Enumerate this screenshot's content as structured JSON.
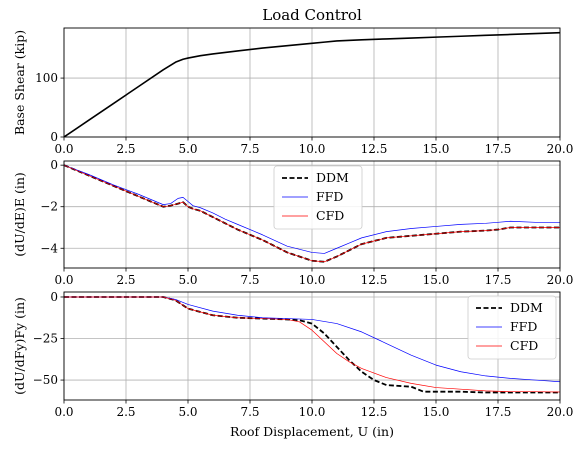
{
  "chart_data": [
    {
      "type": "line",
      "title": "Load Control",
      "xlabel": "",
      "ylabel": "Base Shear (kip)",
      "xlim": [
        0,
        20
      ],
      "ylim": [
        0,
        185
      ],
      "xticks": [
        "0.0",
        "2.5",
        "5.0",
        "7.5",
        "10.0",
        "12.5",
        "15.0",
        "17.5",
        "20.0"
      ],
      "yticks": [
        "0",
        "100"
      ],
      "ytick_values": [
        0,
        100
      ],
      "grid": true,
      "legend": null,
      "series": [
        {
          "color": "#000000",
          "dash": "solid",
          "x": [
            0,
            1,
            2,
            3,
            4,
            4.5,
            4.8,
            5.0,
            5.5,
            6,
            7,
            8,
            9,
            10,
            10.5,
            11,
            12,
            13,
            14,
            15,
            16,
            17,
            18,
            19,
            20
          ],
          "y": [
            0,
            28.5,
            57,
            85.5,
            114,
            127,
            132,
            134,
            138,
            141,
            146,
            151,
            155,
            159,
            161,
            163,
            165,
            166.5,
            168,
            169.5,
            171,
            172.5,
            174,
            175.5,
            177
          ]
        }
      ]
    },
    {
      "type": "line",
      "title": "",
      "xlabel": "",
      "ylabel": "(dU/dE)E (in)",
      "xlim": [
        0,
        20
      ],
      "ylim": [
        -4.95,
        0.2
      ],
      "xticks": [
        "0.0",
        "2.5",
        "5.0",
        "7.5",
        "10.0",
        "12.5",
        "15.0",
        "17.5",
        "20.0"
      ],
      "yticks": [
        "0",
        "−2",
        "−4"
      ],
      "ytick_values": [
        0,
        -2,
        -4
      ],
      "grid": true,
      "legend": "top-center",
      "series": [
        {
          "name": "DDM",
          "color": "#000000",
          "dash": "dashed",
          "x": [
            0,
            1,
            2,
            3,
            4,
            4.3,
            4.6,
            4.8,
            5.0,
            5.2,
            5.5,
            6,
            6.5,
            7,
            8,
            9,
            10,
            10.5,
            11,
            11.5,
            12,
            13,
            14,
            15,
            16,
            17,
            17.5,
            18,
            19,
            20
          ],
          "y": [
            0,
            -0.5,
            -1.0,
            -1.5,
            -2.0,
            -1.95,
            -1.85,
            -1.78,
            -2.0,
            -2.1,
            -2.2,
            -2.5,
            -2.8,
            -3.1,
            -3.6,
            -4.2,
            -4.6,
            -4.65,
            -4.4,
            -4.1,
            -3.8,
            -3.5,
            -3.4,
            -3.3,
            -3.2,
            -3.15,
            -3.1,
            -3.0,
            -3.0,
            -3.0
          ]
        },
        {
          "name": "FFD",
          "color": "#0000ff",
          "dash": "solid",
          "x": [
            0,
            1,
            2,
            3,
            4,
            4.3,
            4.6,
            4.8,
            5.0,
            5.2,
            5.5,
            6,
            6.5,
            7,
            8,
            9,
            10,
            10.5,
            11,
            11.5,
            12,
            13,
            14,
            15,
            16,
            17,
            17.5,
            18,
            19,
            20
          ],
          "y": [
            0,
            -0.45,
            -0.95,
            -1.4,
            -1.9,
            -1.85,
            -1.6,
            -1.55,
            -1.75,
            -1.95,
            -2.05,
            -2.3,
            -2.6,
            -2.85,
            -3.35,
            -3.9,
            -4.2,
            -4.25,
            -4.0,
            -3.75,
            -3.5,
            -3.2,
            -3.05,
            -2.95,
            -2.85,
            -2.8,
            -2.75,
            -2.7,
            -2.75,
            -2.75
          ]
        },
        {
          "name": "CFD",
          "color": "#ff0000",
          "dash": "solid",
          "x": [
            0,
            1,
            2,
            3,
            4,
            4.3,
            4.6,
            4.8,
            5.0,
            5.2,
            5.5,
            6,
            6.5,
            7,
            8,
            9,
            10,
            10.5,
            11,
            11.5,
            12,
            13,
            14,
            15,
            16,
            17,
            17.5,
            18,
            19,
            20
          ],
          "y": [
            0,
            -0.5,
            -1.0,
            -1.5,
            -2.0,
            -1.95,
            -1.85,
            -1.78,
            -2.0,
            -2.1,
            -2.2,
            -2.5,
            -2.8,
            -3.1,
            -3.6,
            -4.2,
            -4.6,
            -4.65,
            -4.4,
            -4.1,
            -3.8,
            -3.5,
            -3.4,
            -3.3,
            -3.2,
            -3.15,
            -3.1,
            -3.0,
            -3.0,
            -3.0
          ]
        }
      ]
    },
    {
      "type": "line",
      "title": "",
      "xlabel": "Roof Displacement, U (in)",
      "ylabel": "(dU/dFy)Fy (in)",
      "xlim": [
        0,
        20
      ],
      "ylim": [
        -62,
        3
      ],
      "xticks": [
        "0.0",
        "2.5",
        "5.0",
        "7.5",
        "10.0",
        "12.5",
        "15.0",
        "17.5",
        "20.0"
      ],
      "yticks": [
        "0",
        "−25",
        "−50"
      ],
      "ytick_values": [
        0,
        -25,
        -50
      ],
      "grid": true,
      "legend": "top-right",
      "series": [
        {
          "name": "DDM",
          "color": "#000000",
          "dash": "dashed",
          "x": [
            0,
            4,
            4.5,
            5,
            6,
            7,
            8,
            9,
            9.5,
            10,
            10.5,
            11,
            11.5,
            12,
            12.5,
            13,
            14,
            14.5,
            15,
            16,
            17,
            18,
            19,
            20
          ],
          "y": [
            0,
            0,
            -2,
            -7,
            -11,
            -12.5,
            -13,
            -13.5,
            -14,
            -16,
            -22,
            -30,
            -38,
            -45,
            -50,
            -53,
            -54,
            -57,
            -57,
            -57,
            -57.5,
            -57.5,
            -57.5,
            -57.5
          ]
        },
        {
          "name": "FFD",
          "color": "#0000ff",
          "dash": "solid",
          "x": [
            0,
            4,
            4.5,
            5,
            6,
            7,
            8,
            9,
            10,
            11,
            12,
            13,
            14,
            15,
            16,
            17,
            18,
            19,
            20
          ],
          "y": [
            0,
            0,
            -1.5,
            -4.5,
            -8.5,
            -11,
            -12.5,
            -13,
            -13.5,
            -16,
            -21,
            -28,
            -35,
            -41,
            -45,
            -47.5,
            -49,
            -50,
            -51
          ]
        },
        {
          "name": "CFD",
          "color": "#ff0000",
          "dash": "solid",
          "x": [
            0,
            4,
            4.5,
            5,
            6,
            7,
            8,
            9,
            9.5,
            10,
            10.5,
            11,
            11.5,
            12,
            13,
            14,
            15,
            16,
            17,
            18,
            19,
            20
          ],
          "y": [
            0,
            0,
            -2,
            -7,
            -11,
            -12.5,
            -13,
            -13.5,
            -15,
            -20,
            -27,
            -34,
            -39,
            -43,
            -48.5,
            -52,
            -54.5,
            -55.5,
            -56.5,
            -57,
            -57,
            -57.2
          ]
        }
      ]
    }
  ]
}
